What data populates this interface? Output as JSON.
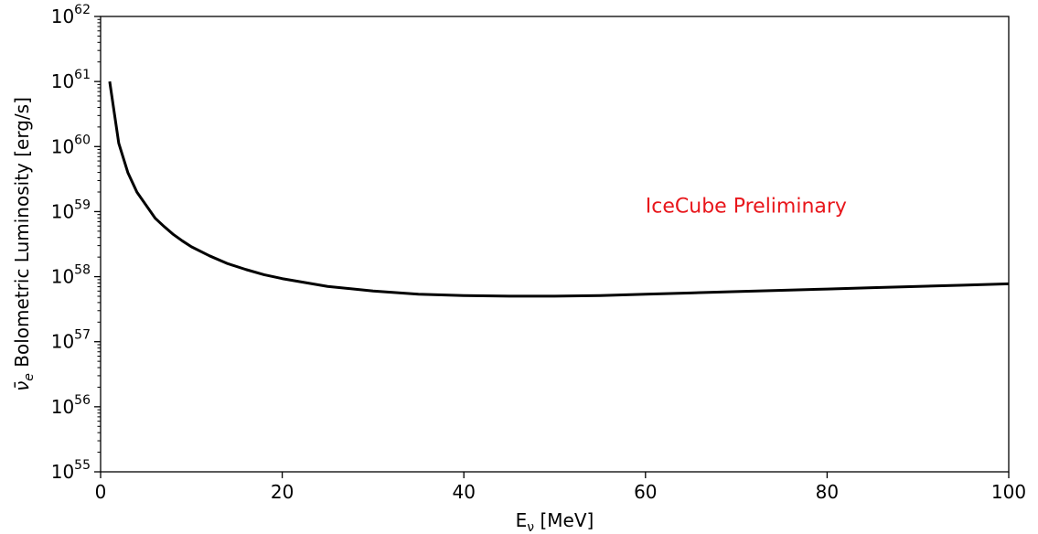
{
  "chart_data": {
    "type": "line",
    "xlabel": "E",
    "xlabel_sub": "ν",
    "xlabel_unit": " [MeV]",
    "ylabel_symbol": "ν̄",
    "ylabel_sub": "e",
    "ylabel_rest": " Bolometric Luminosity [erg/s]",
    "xlim": [
      0,
      100
    ],
    "ylim_exp": [
      55,
      62
    ],
    "yscale": "log",
    "x_ticks": [
      0,
      20,
      40,
      60,
      80,
      100
    ],
    "x_tick_labels": [
      "0",
      "20",
      "40",
      "60",
      "80",
      "100"
    ],
    "y_tick_exps": [
      55,
      56,
      57,
      58,
      59,
      60,
      61,
      62
    ],
    "y_tick_base": "10",
    "y_tick_sups": [
      "55",
      "56",
      "57",
      "58",
      "59",
      "60",
      "61",
      "62"
    ],
    "grid": false,
    "series": [
      {
        "color": "#000000",
        "x": [
          1,
          2,
          3,
          4,
          5,
          6,
          7,
          8,
          9,
          10,
          12,
          14,
          16,
          18,
          20,
          25,
          30,
          35,
          40,
          45,
          47,
          50,
          55,
          60,
          65,
          70,
          75,
          80,
          85,
          90,
          95,
          100
        ],
        "y_exp": [
          61.0,
          60.05,
          59.6,
          59.3,
          59.1,
          58.9,
          58.77,
          58.65,
          58.55,
          58.46,
          58.32,
          58.2,
          58.11,
          58.03,
          57.97,
          57.85,
          57.78,
          57.73,
          57.71,
          57.7,
          57.7,
          57.7,
          57.71,
          57.73,
          57.75,
          57.77,
          57.79,
          57.81,
          57.83,
          57.85,
          57.87,
          57.89
        ]
      }
    ],
    "annotation": {
      "text": "IceCube Preliminary",
      "color": "#e8161b",
      "x": 60,
      "y_exp": 59.1
    }
  }
}
